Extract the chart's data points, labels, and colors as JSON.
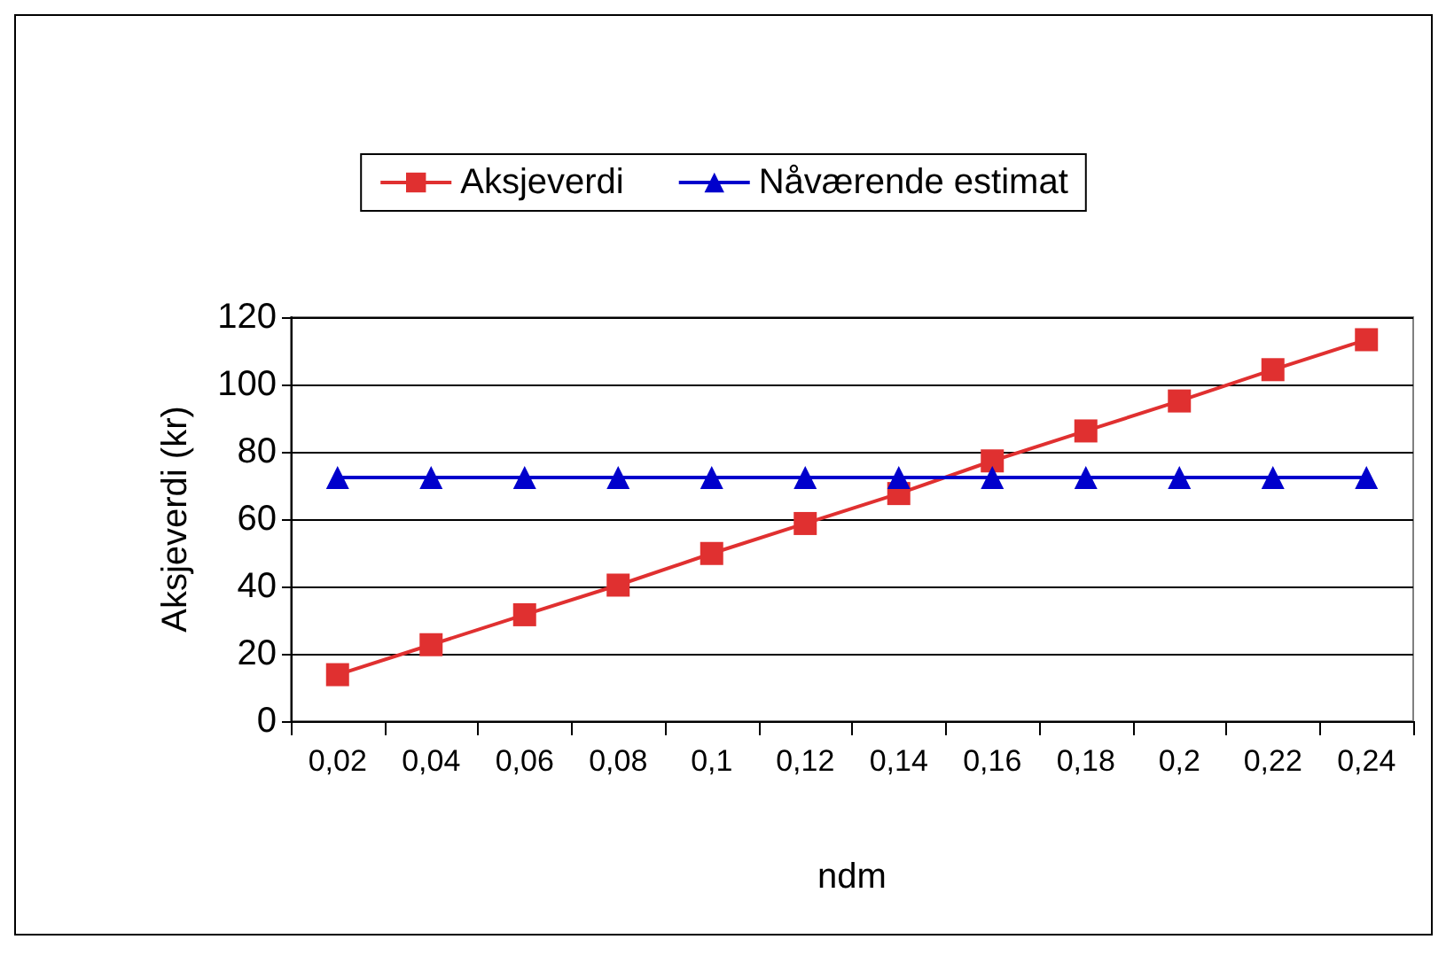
{
  "chart_data": {
    "type": "line",
    "xlabel": "ndm",
    "ylabel": "Aksjeverdi (kr)",
    "categories": [
      "0,02",
      "0,04",
      "0,06",
      "0,08",
      "0,1",
      "0,12",
      "0,14",
      "0,16",
      "0,18",
      "0,2",
      "0,22",
      "0,24"
    ],
    "series": [
      {
        "name": "Aksjeverdi",
        "color": "#e03030",
        "marker": "square",
        "values": [
          13.8,
          22.7,
          31.6,
          40.4,
          49.8,
          58.7,
          67.6,
          77.3,
          86.2,
          95.1,
          104.4,
          113.3
        ]
      },
      {
        "name": "Nåværende estimat",
        "color": "#0000cc",
        "marker": "triangle",
        "values": [
          72.4,
          72.4,
          72.4,
          72.4,
          72.4,
          72.4,
          72.4,
          72.4,
          72.4,
          72.4,
          72.4,
          72.4
        ]
      }
    ],
    "ylim": [
      0,
      120
    ],
    "yticks": [
      0,
      20,
      40,
      60,
      80,
      100,
      120
    ],
    "grid": "y",
    "legend": "top"
  }
}
